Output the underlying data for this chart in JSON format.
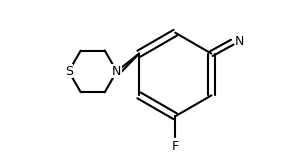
{
  "background_color": "#ffffff",
  "line_color": "#000000",
  "line_width": 1.5,
  "bond_width": 1.5,
  "label_S": "S",
  "label_N": "N",
  "label_F": "F",
  "label_CN": "N",
  "figsize": [
    2.92,
    1.56
  ],
  "dpi": 100
}
